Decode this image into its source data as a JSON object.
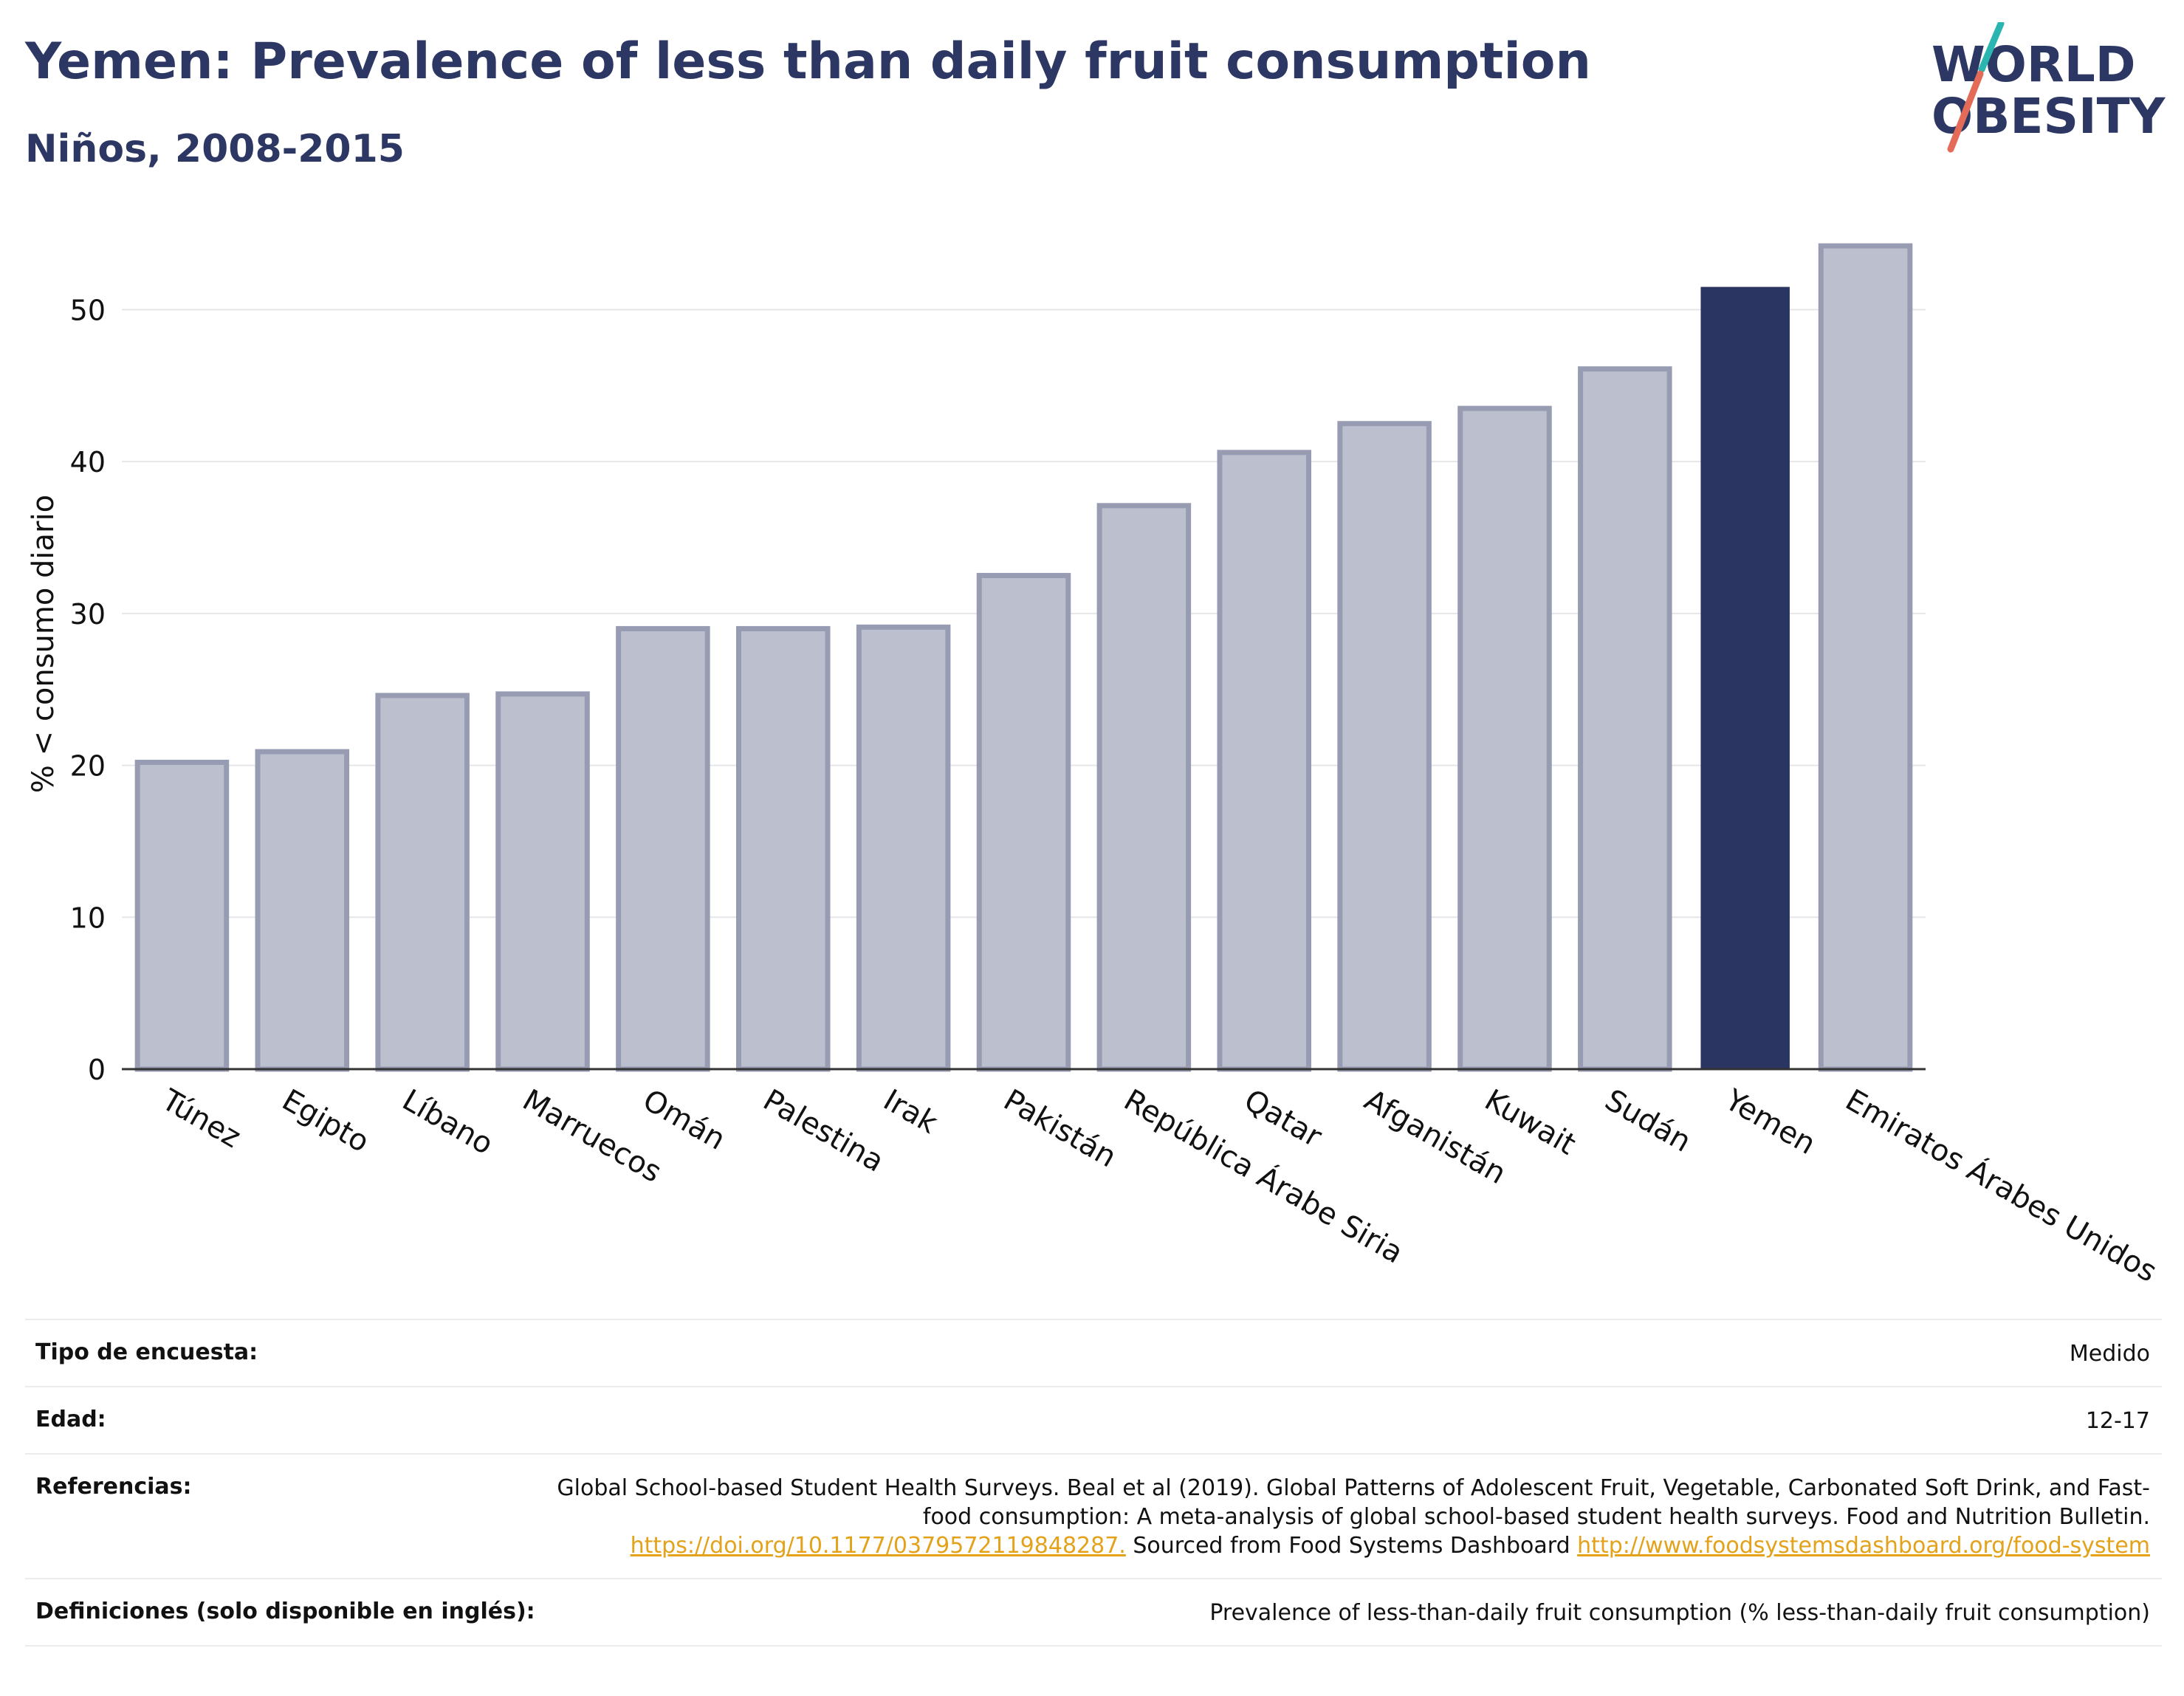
{
  "header": {
    "title": "Yemen: Prevalence of less than daily fruit consumption",
    "subtitle": "Niños, 2008-2015"
  },
  "logo": {
    "line1": "WORLD",
    "line2": "OBESITY"
  },
  "colors": {
    "highlight": "#2a3661",
    "bar_fill": "#bcc0ce",
    "bar_stroke": "#979cb3",
    "accent_teal": "#2bb5b0",
    "accent_coral": "#e56b59",
    "link": "#e3a21a"
  },
  "chart_data": {
    "type": "bar",
    "categories": [
      "Túnez",
      "Egipto",
      "Líbano",
      "Marruecos",
      "Omán",
      "Palestina",
      "Irak",
      "Pakistán",
      "República Árabe Siria",
      "Qatar",
      "Afganistán",
      "Kuwait",
      "Sudán",
      "Yemen",
      "Emiratos Árabes Unidos"
    ],
    "values": [
      20.2,
      20.9,
      24.6,
      24.7,
      29.0,
      29.0,
      29.1,
      32.5,
      37.1,
      40.6,
      42.5,
      43.5,
      46.1,
      51.5,
      54.2
    ],
    "highlight": "Yemen",
    "ylabel": "% < consumo diario",
    "xlabel": "",
    "ylim": [
      0,
      56
    ],
    "yticks": [
      0,
      10,
      20,
      30,
      40,
      50
    ],
    "grid": true
  },
  "info": {
    "survey_type_label": "Tipo de encuesta:",
    "survey_type_value": "Medido",
    "age_label": "Edad:",
    "age_value": "12-17",
    "references_label": "Referencias:",
    "references_text": "Global School-based Student Health Surveys. Beal et al (2019). Global Patterns of Adolescent Fruit, Vegetable, Carbonated Soft Drink, and Fast-food consumption: A meta-analysis of global school-based student health surveys. Food and Nutrition Bulletin.",
    "references_link1": "https://doi.org/10.1177/0379572119848287.",
    "references_mid": " Sourced from Food Systems Dashboard ",
    "references_link2": "http://www.foodsystemsdashboard.org/food-system",
    "definitions_label": "Definiciones (solo disponible en inglés):",
    "definitions_value": "Prevalence of less-than-daily fruit consumption (% less-than-daily fruit consumption)"
  }
}
